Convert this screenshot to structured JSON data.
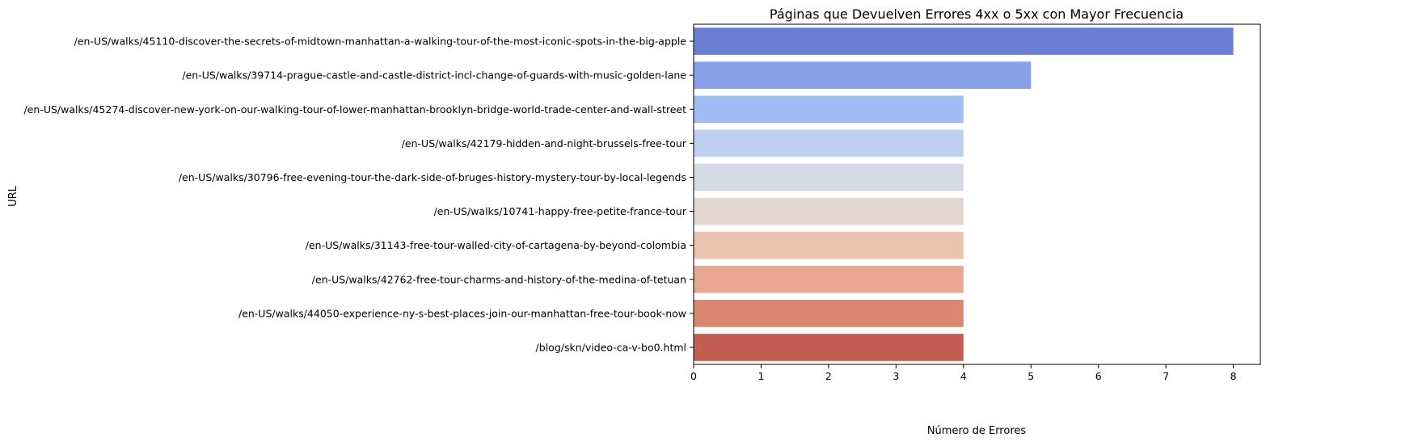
{
  "chart_data": {
    "type": "bar",
    "orientation": "horizontal",
    "title": "Páginas que Devuelven Errores 4xx o 5xx con Mayor Frecuencia",
    "xlabel": "Número de Errores",
    "ylabel": "URL",
    "xlim": [
      0,
      8.4
    ],
    "x_ticks": [
      "0",
      "1",
      "2",
      "3",
      "4",
      "5",
      "6",
      "7",
      "8"
    ],
    "grid": false,
    "categories": [
      "/en-US/walks/45110-discover-the-secrets-of-midtown-manhattan-a-walking-tour-of-the-most-iconic-spots-in-the-big-apple",
      "/en-US/walks/39714-prague-castle-and-castle-district-incl-change-of-guards-with-music-golden-lane",
      "/en-US/walks/45274-discover-new-york-on-our-walking-tour-of-lower-manhattan-brooklyn-bridge-world-trade-center-and-wall-street",
      "/en-US/walks/42179-hidden-and-night-brussels-free-tour",
      "/en-US/walks/30796-free-evening-tour-the-dark-side-of-bruges-history-mystery-tour-by-local-legends",
      "/en-US/walks/10741-happy-free-petite-france-tour",
      "/en-US/walks/31143-free-tour-walled-city-of-cartagena-by-beyond-colombia",
      "/en-US/walks/42762-free-tour-charms-and-history-of-the-medina-of-tetuan",
      "/en-US/walks/44050-experience-ny-s-best-places-join-our-manhattan-free-tour-book-now",
      "/blog/skn/video-ca-v-bo0.html"
    ],
    "values": [
      8,
      5,
      4,
      4,
      4,
      4,
      4,
      4,
      4,
      4
    ],
    "colors": [
      "#6a7fd3",
      "#86a1e8",
      "#a2bdf5",
      "#bfd1f2",
      "#d5dbe6",
      "#e4d7cf",
      "#edc4b0",
      "#e8a78e",
      "#da8670",
      "#c35e53"
    ]
  }
}
